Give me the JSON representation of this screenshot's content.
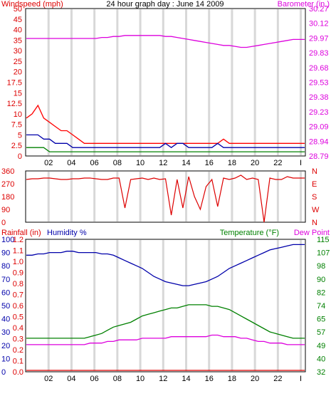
{
  "chart_data": [
    {
      "type": "line",
      "title": "24 hour graph day : June 14 2009",
      "left_axis_label": "Windspeed (mph)",
      "right_axis_label": "Barometer (in.)",
      "x_ticks": [
        "02",
        "04",
        "06",
        "08",
        "10",
        "12",
        "14",
        "16",
        "18",
        "20",
        "22",
        "I"
      ],
      "left_ticks": [
        "0",
        "2.5",
        "5",
        "7.5",
        "10",
        "12.5",
        "15",
        "17.5",
        "20",
        "25",
        "30",
        "35",
        "40",
        "45",
        "50"
      ],
      "right_ticks": [
        "28.79",
        "28.94",
        "29.09",
        "29.23",
        "29.38",
        "29.53",
        "29.68",
        "29.83",
        "29.97",
        "30.12",
        "30.27"
      ],
      "ylim_left": [
        0,
        50
      ],
      "ylim_right": [
        28.79,
        30.27
      ],
      "series": [
        {
          "color": "#ff0000",
          "axis": "left",
          "values": [
            9,
            10,
            12,
            9,
            8,
            7,
            6,
            6,
            5,
            4,
            3,
            3,
            3,
            3,
            3,
            3,
            3,
            3,
            3,
            3,
            3,
            3,
            3,
            3,
            3,
            3,
            3,
            3,
            3,
            3,
            3,
            3,
            3,
            3,
            4,
            3,
            3,
            3,
            3,
            3,
            3,
            3,
            3,
            3,
            3,
            3,
            3,
            3,
            3
          ]
        },
        {
          "color": "#0000aa",
          "axis": "left",
          "values": [
            5,
            5,
            5,
            4,
            4,
            3,
            3,
            3,
            2,
            2,
            2,
            2,
            2,
            2,
            2,
            2,
            2,
            2,
            2,
            2,
            2,
            2,
            2,
            2,
            3,
            2,
            3,
            3,
            2,
            2,
            2,
            2,
            2,
            3,
            2,
            2,
            2,
            2,
            2,
            2,
            2,
            2,
            2,
            2,
            2,
            2,
            2,
            2,
            2
          ]
        },
        {
          "color": "#008000",
          "axis": "left",
          "values": [
            2,
            2,
            2,
            2,
            1,
            1,
            1,
            1,
            1,
            1,
            1,
            1,
            1,
            1,
            1,
            1,
            1,
            1,
            1,
            1,
            1,
            1,
            1,
            1,
            1,
            1,
            1,
            1,
            1,
            1,
            1,
            1,
            1,
            1,
            1,
            1,
            1,
            1,
            1,
            1,
            1,
            1,
            1,
            1,
            1,
            1,
            1,
            1,
            1
          ]
        },
        {
          "color": "#dd00dd",
          "axis": "right",
          "values": [
            29.97,
            29.97,
            29.97,
            29.97,
            29.97,
            29.97,
            29.97,
            29.97,
            29.97,
            29.97,
            29.97,
            29.97,
            29.97,
            29.98,
            29.98,
            29.99,
            29.99,
            30.0,
            30.0,
            30.0,
            30.0,
            30.0,
            30.0,
            30.0,
            29.99,
            29.99,
            29.98,
            29.97,
            29.96,
            29.95,
            29.94,
            29.93,
            29.92,
            29.91,
            29.9,
            29.9,
            29.89,
            29.88,
            29.88,
            29.89,
            29.9,
            29.91,
            29.92,
            29.93,
            29.94,
            29.95,
            29.96,
            29.96,
            29.96
          ]
        }
      ]
    },
    {
      "type": "line",
      "left_ticks": [
        "0",
        "90",
        "180",
        "270",
        "360"
      ],
      "right_ticks": [
        "N",
        "W",
        "S",
        "E",
        "N"
      ],
      "ylim_left": [
        0,
        360
      ],
      "series": [
        {
          "color": "#dd0000",
          "axis": "left",
          "values": [
            300,
            305,
            305,
            310,
            310,
            305,
            300,
            300,
            305,
            305,
            310,
            310,
            305,
            300,
            300,
            310,
            310,
            100,
            300,
            305,
            310,
            300,
            310,
            300,
            305,
            50,
            300,
            100,
            320,
            180,
            90,
            250,
            300,
            110,
            310,
            300,
            310,
            330,
            300,
            310,
            300,
            0,
            310,
            300,
            300,
            320,
            310,
            310,
            310
          ]
        }
      ]
    },
    {
      "type": "line",
      "left_axis_label_1": "Rainfall (in)",
      "left_axis_label_2": "Humidity %",
      "right_axis_label_1": "Temperature (°F)",
      "right_axis_label_2": "Dew Point",
      "rain_ticks": [
        "0.0",
        "0.1",
        "0.2",
        "0.3",
        "0.4",
        "0.5",
        "0.6",
        "0.7",
        "0.8",
        "0.9",
        "1.0",
        "1.1",
        "1.2"
      ],
      "humidity_ticks": [
        "0",
        "10",
        "20",
        "30",
        "40",
        "50",
        "60",
        "70",
        "80",
        "90",
        "100"
      ],
      "right_ticks": [
        "32",
        "40",
        "49",
        "57",
        "65",
        "74",
        "82",
        "90",
        "98",
        "107",
        "115"
      ],
      "ylim_humidity": [
        0,
        100
      ],
      "ylim_temperature": [
        32,
        115
      ],
      "series": [
        {
          "color": "#0000aa",
          "axis": "humidity",
          "values": [
            88,
            88,
            89,
            89,
            90,
            90,
            90,
            91,
            91,
            90,
            90,
            90,
            90,
            89,
            89,
            88,
            86,
            84,
            82,
            80,
            78,
            75,
            72,
            70,
            68,
            67,
            66,
            65,
            65,
            66,
            67,
            68,
            70,
            72,
            75,
            78,
            80,
            82,
            84,
            86,
            88,
            90,
            92,
            93,
            94,
            95,
            96,
            96,
            96
          ]
        },
        {
          "color": "#008000",
          "axis": "temperature",
          "values": [
            53,
            53,
            53,
            53,
            53,
            53,
            53,
            53,
            53,
            53,
            53,
            54,
            55,
            56,
            58,
            60,
            61,
            62,
            63,
            65,
            67,
            68,
            69,
            70,
            71,
            72,
            72,
            73,
            74,
            74,
            74,
            74,
            73,
            73,
            72,
            71,
            69,
            67,
            65,
            63,
            61,
            59,
            57,
            56,
            55,
            54,
            53,
            53,
            53
          ]
        },
        {
          "color": "#dd00dd",
          "axis": "temperature",
          "values": [
            49,
            49,
            49,
            49,
            49,
            49,
            49,
            49,
            49,
            49,
            49,
            50,
            50,
            50,
            51,
            51,
            52,
            52,
            52,
            52,
            53,
            53,
            53,
            53,
            53,
            54,
            54,
            54,
            54,
            54,
            54,
            54,
            55,
            55,
            54,
            54,
            54,
            53,
            53,
            52,
            51,
            51,
            50,
            50,
            50,
            49,
            49,
            49,
            49
          ]
        },
        {
          "color": "#dd0000",
          "axis": "rain",
          "values": [
            0,
            0,
            0,
            0,
            0,
            0,
            0,
            0,
            0,
            0,
            0,
            0,
            0,
            0,
            0,
            0,
            0,
            0,
            0,
            0,
            0,
            0,
            0,
            0,
            0,
            0,
            0,
            0,
            0,
            0,
            0,
            0,
            0,
            0,
            0,
            0,
            0,
            0,
            0,
            0,
            0,
            0,
            0,
            0,
            0,
            0,
            0,
            0,
            0
          ]
        }
      ]
    }
  ]
}
